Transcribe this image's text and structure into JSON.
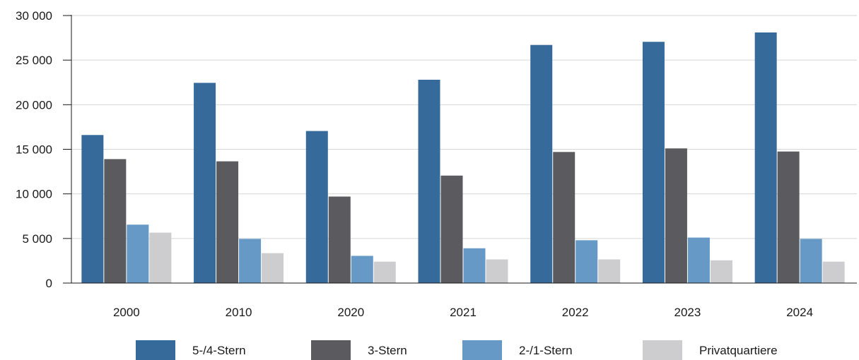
{
  "chart_data": {
    "type": "bar",
    "categories": [
      "2000",
      "2010",
      "2020",
      "2021",
      "2022",
      "2023",
      "2024"
    ],
    "series": [
      {
        "name": "5-/4-Stern",
        "color": "#356a9a",
        "values": [
          16600,
          22450,
          17050,
          22800,
          26700,
          27050,
          28100
        ]
      },
      {
        "name": "3-Stern",
        "color": "#5b5b5f",
        "values": [
          13900,
          13650,
          9700,
          12050,
          14700,
          15100,
          14750
        ]
      },
      {
        "name": "2-/1-Stern",
        "color": "#6699c6",
        "values": [
          6550,
          4950,
          3050,
          3900,
          4800,
          5100,
          4950
        ]
      },
      {
        "name": "Privatquartiere",
        "color": "#cdcdcf",
        "values": [
          5650,
          3350,
          2400,
          2650,
          2650,
          2550,
          2400
        ]
      }
    ],
    "yticks": [
      "0",
      "5 000",
      "10 000",
      "15 000",
      "20 000",
      "25 000",
      "30 000"
    ],
    "ylim": [
      0,
      30000
    ],
    "grid": true,
    "legend_position": "bottom"
  }
}
